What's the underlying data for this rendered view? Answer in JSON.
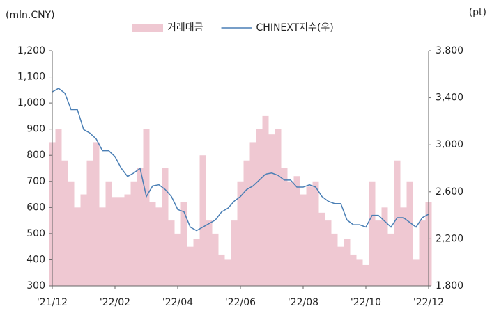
{
  "chart_data": {
    "type": "bar-line",
    "y_unit": "(mln.CNY)",
    "y2_unit": "(pt)",
    "categories": [
      "'21/12",
      null,
      null,
      null,
      null,
      null,
      null,
      null,
      null,
      null,
      "'22/02",
      null,
      null,
      null,
      null,
      null,
      null,
      null,
      null,
      null,
      "'22/04",
      null,
      null,
      null,
      null,
      null,
      null,
      null,
      null,
      null,
      "'22/06",
      null,
      null,
      null,
      null,
      null,
      null,
      null,
      null,
      null,
      "'22/08",
      null,
      null,
      null,
      null,
      null,
      null,
      null,
      null,
      null,
      "'22/10",
      null,
      null,
      null,
      null,
      null,
      null,
      null,
      null,
      null,
      "'22/12"
    ],
    "series": [
      {
        "name": "거래대금",
        "type": "bar",
        "color": "#efc8d2",
        "values": [
          850,
          900,
          780,
          700,
          600,
          650,
          780,
          850,
          600,
          700,
          640,
          640,
          650,
          700,
          750,
          900,
          620,
          600,
          750,
          550,
          500,
          620,
          450,
          480,
          800,
          550,
          500,
          420,
          400,
          550,
          700,
          780,
          850,
          900,
          950,
          880,
          900,
          750,
          700,
          720,
          650,
          680,
          700,
          580,
          550,
          500,
          450,
          480,
          420,
          400,
          380,
          700,
          550,
          600,
          500,
          780,
          600,
          700,
          400,
          550,
          620
        ]
      },
      {
        "name": "CHINEXT지수(우)",
        "type": "line",
        "axis": "y2",
        "color": "#4a7fb5",
        "values": [
          3450,
          3480,
          3440,
          3300,
          3300,
          3130,
          3100,
          3050,
          2950,
          2950,
          2900,
          2800,
          2730,
          2760,
          2800,
          2560,
          2650,
          2660,
          2620,
          2560,
          2450,
          2430,
          2300,
          2270,
          2300,
          2330,
          2360,
          2430,
          2460,
          2520,
          2560,
          2620,
          2650,
          2700,
          2750,
          2760,
          2740,
          2700,
          2700,
          2640,
          2640,
          2660,
          2640,
          2560,
          2520,
          2500,
          2500,
          2360,
          2320,
          2320,
          2300,
          2400,
          2400,
          2350,
          2300,
          2380,
          2380,
          2340,
          2300,
          2380,
          2410
        ]
      }
    ],
    "ylim": [
      300,
      1200
    ],
    "yticks": [
      300,
      400,
      500,
      600,
      700,
      800,
      900,
      {
        "value": 1000,
        "label": "1,000"
      },
      {
        "value": 1100,
        "label": "1,100"
      },
      {
        "value": 1200,
        "label": "1,200"
      }
    ],
    "y2lim": [
      1800,
      3800
    ],
    "y2ticks": [
      {
        "value": 1800,
        "label": "1,800"
      },
      {
        "value": 2200,
        "label": "2,200"
      },
      {
        "value": 2600,
        "label": "2,600"
      },
      {
        "value": 3000,
        "label": "3,000"
      },
      {
        "value": 3400,
        "label": "3,400"
      },
      {
        "value": 3800,
        "label": "3,800"
      }
    ]
  }
}
